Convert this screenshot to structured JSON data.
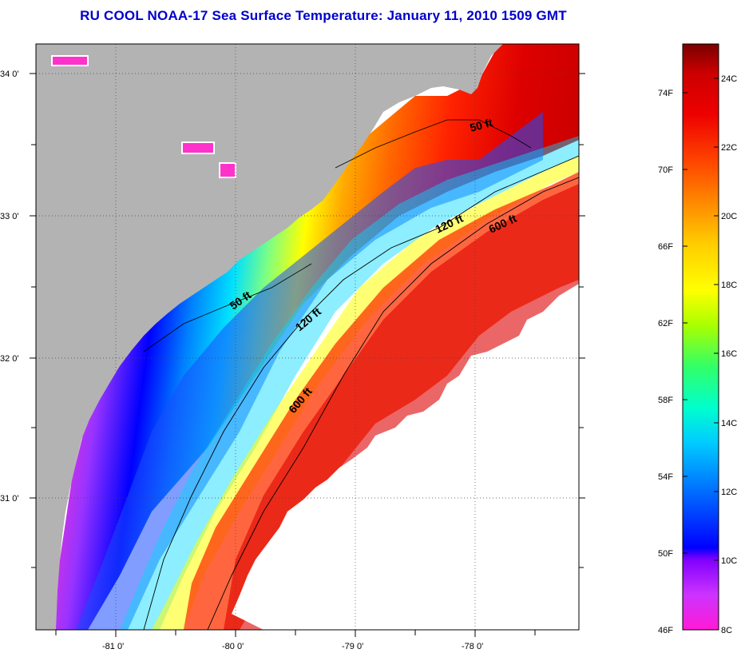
{
  "title": "RU COOL  NOAA-17  Sea Surface Temperature:  January 11, 2010 1509 GMT",
  "lat_labels": [
    "34 0'",
    "33 0'",
    "32 0'",
    "31 0'"
  ],
  "lon_labels": [
    "-81 0'",
    "-80 0'",
    "-79 0'",
    "-78 0'"
  ],
  "contours": [
    "50 ft",
    "120 ft",
    "600 ft"
  ],
  "colorbar": {
    "fahrenheit": [
      "74F",
      "70F",
      "66F",
      "62F",
      "58F",
      "54F",
      "50F",
      "46F"
    ],
    "celsius": [
      "24C",
      "22C",
      "20C",
      "18C",
      "16C",
      "14C",
      "12C",
      "10C",
      "8C"
    ],
    "gradient": [
      "#ff1ad6",
      "#cc33ff",
      "#8000ff",
      "#0000ff",
      "#0066ff",
      "#00ccff",
      "#00ffcc",
      "#33ff66",
      "#aaff00",
      "#ffff00",
      "#ffcc00",
      "#ff8800",
      "#ff4400",
      "#ee0000",
      "#cc0000",
      "#7a0000"
    ]
  },
  "colors": {
    "land": "#b3b3b3",
    "coast_sst": "#ff33cc",
    "title": "#0000cc"
  }
}
